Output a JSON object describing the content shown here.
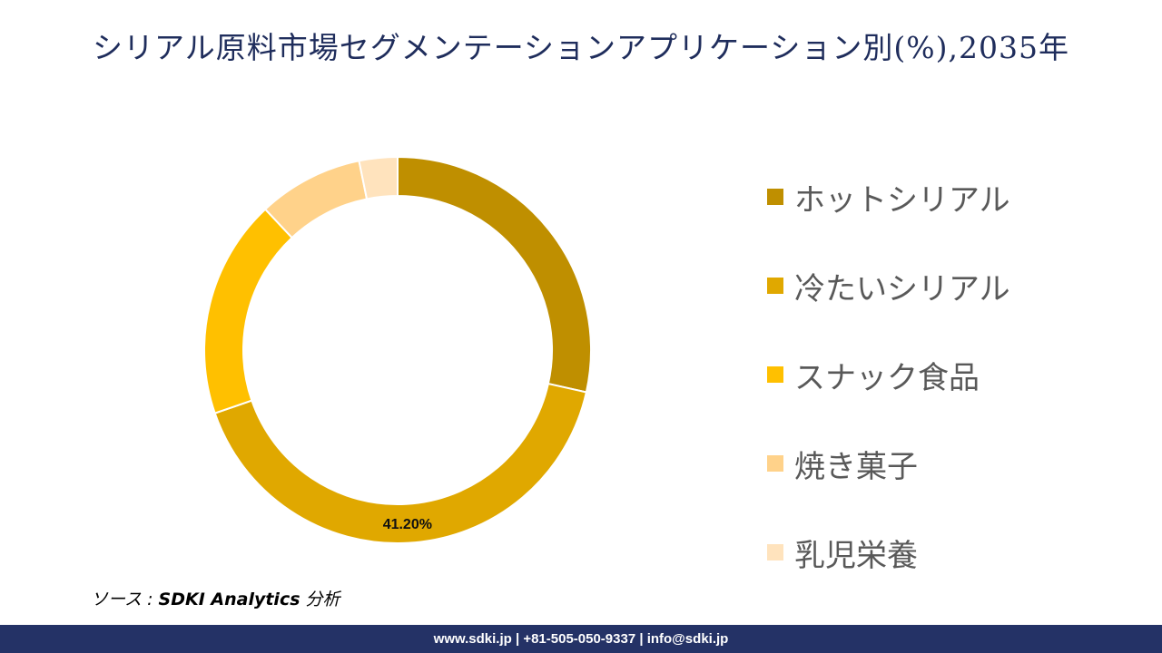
{
  "title": "シリアル原料市場セグメンテーションアプリケーション別(%),2035年",
  "source": {
    "prefix": "ソース : ",
    "name": "SDKI Analytics",
    "suffix": " 分析"
  },
  "footer": {
    "text": "www.sdki.jp | +81-505-050-9337 | info@sdki.jp"
  },
  "chart_data": {
    "type": "pie",
    "style": "donut",
    "legend_position": "right",
    "start_angle_deg": 0,
    "categories": [
      "ホットシリアル",
      "冷たいシリアル",
      "スナック食品",
      "焼き菓子",
      "乳児栄養"
    ],
    "values": [
      28.5,
      41.2,
      18.3,
      8.8,
      3.2
    ],
    "colors": [
      "#bf8f00",
      "#e0a800",
      "#ffc000",
      "#ffd28a",
      "#ffe3bd"
    ],
    "data_labels": [
      "",
      "41.20%",
      "",
      "",
      ""
    ]
  }
}
